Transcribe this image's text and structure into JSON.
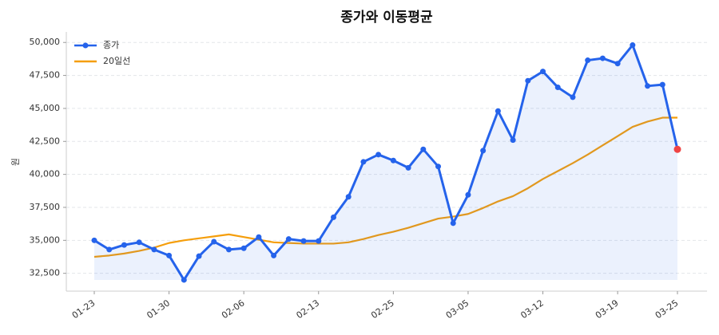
{
  "chart_data": {
    "type": "line",
    "title": "종가와 이동평균",
    "y_label": "원",
    "categories": [
      "01-23",
      null,
      null,
      null,
      null,
      "01-30",
      null,
      null,
      null,
      null,
      "02-06",
      null,
      null,
      null,
      null,
      "02-13",
      null,
      null,
      null,
      null,
      "02-25",
      null,
      null,
      null,
      null,
      "03-05",
      null,
      null,
      null,
      null,
      "03-12",
      null,
      null,
      null,
      null,
      "03-19",
      null,
      null,
      null,
      "03-25"
    ],
    "series": [
      {
        "name": "종가",
        "color": "#2563eb",
        "markers": true,
        "fill": true,
        "values": [
          35000,
          34300,
          34650,
          34850,
          34300,
          33850,
          32000,
          33800,
          34900,
          34300,
          34400,
          35250,
          33850,
          35100,
          34950,
          34950,
          36750,
          38300,
          40950,
          41500,
          41050,
          40500,
          41900,
          40600,
          36300,
          38450,
          41800,
          44800,
          42600,
          47100,
          47800,
          46600,
          45850,
          48650,
          48800,
          48400,
          49800,
          46700,
          46800,
          41900
        ]
      },
      {
        "name": "20일선",
        "color": "#f59e0b",
        "markers": false,
        "fill": false,
        "values": [
          33750,
          33850,
          34000,
          34200,
          34450,
          34800,
          35000,
          35150,
          35300,
          35450,
          35250,
          35050,
          34850,
          34800,
          34750,
          34750,
          34750,
          34850,
          35100,
          35400,
          35650,
          35950,
          36300,
          36650,
          36800,
          37000,
          37450,
          37950,
          38350,
          38950,
          39650,
          40250,
          40850,
          41500,
          42200,
          42900,
          43600,
          44000,
          44300,
          44300
        ]
      }
    ],
    "last_point_color": "#ef4444",
    "ylim": [
      31150,
      50800
    ],
    "yticks": [
      {
        "value": 32500,
        "label": "32,500"
      },
      {
        "value": 35000,
        "label": "35,000"
      },
      {
        "value": 37500,
        "label": "37,500"
      },
      {
        "value": 40000,
        "label": "40,000"
      },
      {
        "value": 42500,
        "label": "42,500"
      },
      {
        "value": 45000,
        "label": "45,000"
      },
      {
        "value": 47500,
        "label": "47,500"
      },
      {
        "value": 50000,
        "label": "50,000"
      }
    ],
    "grid": true,
    "legend": "upper-left"
  }
}
